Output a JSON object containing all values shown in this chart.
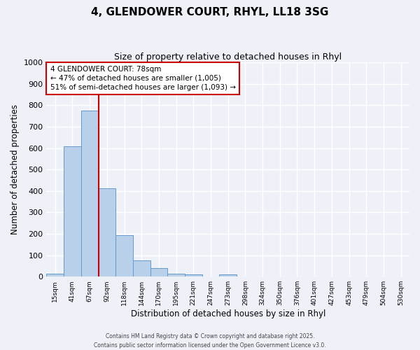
{
  "title": "4, GLENDOWER COURT, RHYL, LL18 3SG",
  "subtitle": "Size of property relative to detached houses in Rhyl",
  "xlabel": "Distribution of detached houses by size in Rhyl",
  "ylabel": "Number of detached properties",
  "bar_labels": [
    "15sqm",
    "41sqm",
    "67sqm",
    "92sqm",
    "118sqm",
    "144sqm",
    "170sqm",
    "195sqm",
    "221sqm",
    "247sqm",
    "273sqm",
    "298sqm",
    "324sqm",
    "350sqm",
    "376sqm",
    "401sqm",
    "427sqm",
    "453sqm",
    "479sqm",
    "504sqm",
    "530sqm"
  ],
  "bar_values": [
    15,
    608,
    775,
    413,
    192,
    75,
    40,
    15,
    10,
    0,
    10,
    0,
    0,
    0,
    0,
    0,
    0,
    0,
    0,
    0,
    0
  ],
  "bar_color": "#b8d0ea",
  "bar_edgecolor": "#6699cc",
  "vline_color": "#cc0000",
  "vline_index": 2.5,
  "ylim": [
    0,
    1000
  ],
  "yticks": [
    0,
    100,
    200,
    300,
    400,
    500,
    600,
    700,
    800,
    900,
    1000
  ],
  "annotation_title": "4 GLENDOWER COURT: 78sqm",
  "annotation_line1": "← 47% of detached houses are smaller (1,005)",
  "annotation_line2": "51% of semi-detached houses are larger (1,093) →",
  "annotation_box_color": "#ffffff",
  "annotation_box_edgecolor": "#cc0000",
  "bg_color": "#eef2f8",
  "grid_color": "#ffffff",
  "footer1": "Contains HM Land Registry data © Crown copyright and database right 2025.",
  "footer2": "Contains public sector information licensed under the Open Government Licence v3.0."
}
